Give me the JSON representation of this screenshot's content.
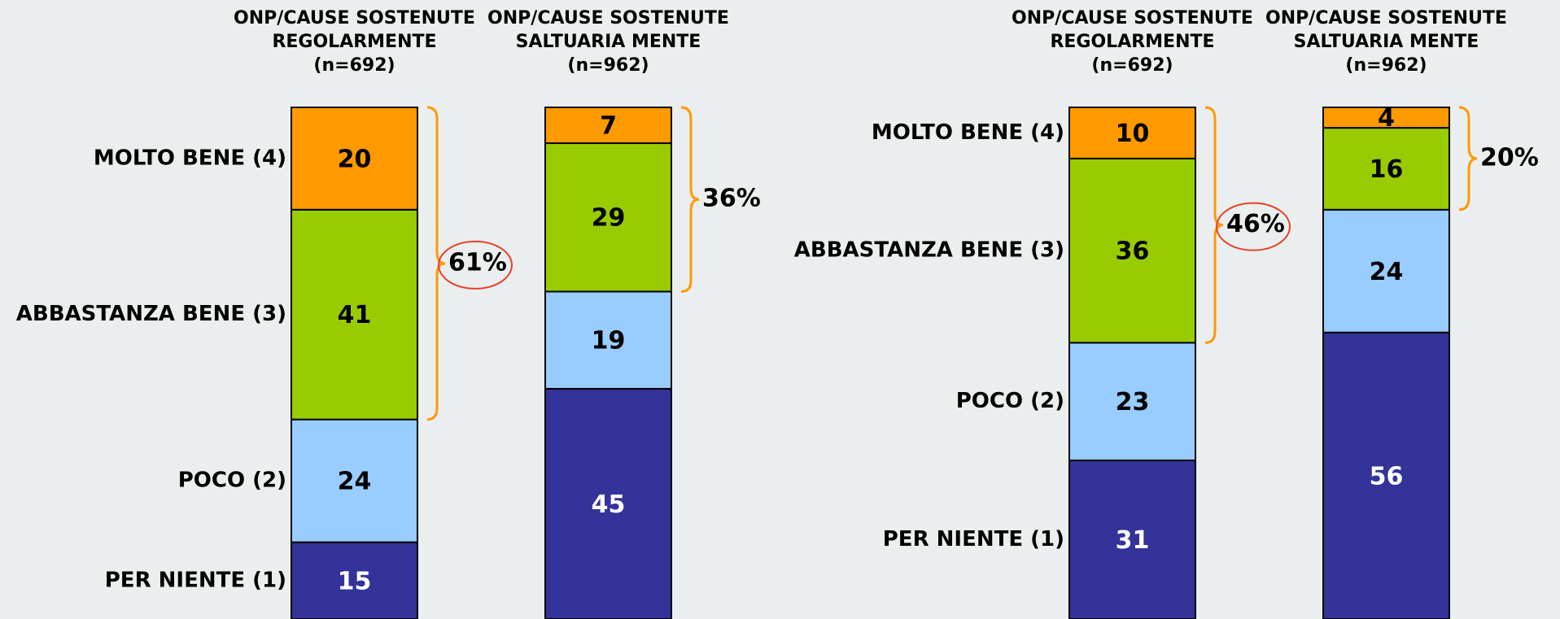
{
  "chart_data": [
    {
      "type": "stacked_bar",
      "categories": [
        [
          "ONP/CAUSE SOSTENUTE",
          "REGOLARMENTE",
          "(n=692)"
        ],
        [
          "ONP/CAUSE SOSTENUTE",
          "SALTUARIA MENTE",
          "(n=962)"
        ]
      ],
      "series": [
        {
          "name": "PER NIENTE (1)",
          "color": "#333399",
          "values": [
            15,
            45
          ]
        },
        {
          "name": "POCO (2)",
          "color": "#99ccff",
          "values": [
            24,
            19
          ]
        },
        {
          "name": "ABBASTANZA BENE (3)",
          "color": "#99cc00",
          "values": [
            41,
            29
          ]
        },
        {
          "name": "MOLTO BENE (4)",
          "color": "#ff9900",
          "values": [
            20,
            7
          ]
        }
      ],
      "ylim": [
        0,
        100
      ],
      "brackets": [
        {
          "value": 61,
          "label": "61%",
          "circled": true
        },
        {
          "value": 36,
          "label": "36%",
          "circled": false
        }
      ]
    },
    {
      "type": "stacked_bar",
      "categories": [
        [
          "ONP/CAUSE SOSTENUTE",
          "REGOLARMENTE",
          "(n=692)"
        ],
        [
          "ONP/CAUSE SOSTENUTE",
          "SALTUARIA MENTE",
          "(n=962)"
        ]
      ],
      "series": [
        {
          "name": "PER NIENTE (1)",
          "color": "#333399",
          "values": [
            31,
            56
          ]
        },
        {
          "name": "POCO (2)",
          "color": "#99ccff",
          "values": [
            23,
            24
          ]
        },
        {
          "name": "ABBASTANZA BENE (3)",
          "color": "#99cc00",
          "values": [
            36,
            16
          ]
        },
        {
          "name": "MOLTO BENE (4)",
          "color": "#ff9900",
          "values": [
            10,
            4
          ]
        }
      ],
      "ylim": [
        0,
        100
      ],
      "brackets": [
        {
          "value": 46,
          "label": "46%",
          "circled": true
        },
        {
          "value": 20,
          "label": "20%",
          "circled": false
        }
      ]
    }
  ]
}
